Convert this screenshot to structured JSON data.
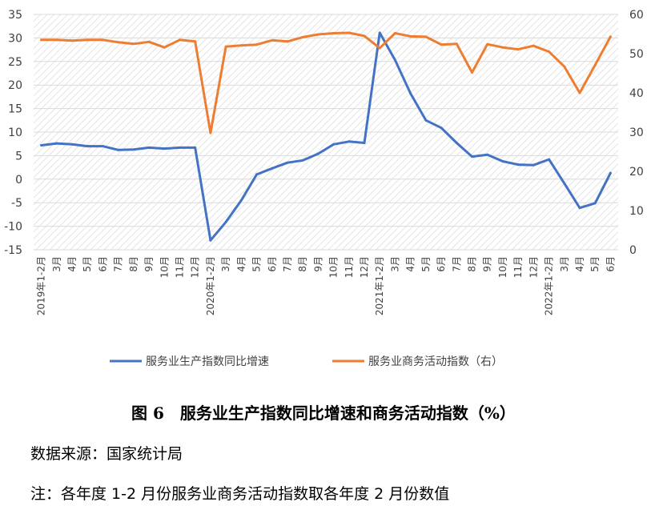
{
  "chart_data": {
    "type": "line",
    "categories": [
      "2019年1-2月",
      "3月",
      "4月",
      "5月",
      "6月",
      "7月",
      "8月",
      "9月",
      "10月",
      "11月",
      "12月",
      "2020年1-2月",
      "3月",
      "4月",
      "5月",
      "6月",
      "7月",
      "8月",
      "9月",
      "10月",
      "11月",
      "12月",
      "2021年1-2月",
      "3月",
      "4月",
      "5月",
      "6月",
      "7月",
      "8月",
      "9月",
      "10月",
      "11月",
      "12月",
      "2022年1-2月",
      "3月",
      "4月",
      "5月",
      "6月"
    ],
    "series": [
      {
        "name": "服务业生产指数同比增速",
        "axis": "left",
        "color": "#4472C4",
        "values": [
          7.2,
          7.6,
          7.4,
          7.0,
          7.0,
          6.2,
          6.3,
          6.7,
          6.5,
          6.7,
          6.7,
          -13.0,
          -9.1,
          -4.5,
          1.0,
          2.3,
          3.5,
          4.0,
          5.4,
          7.4,
          8.0,
          7.7,
          31.1,
          25.3,
          18.2,
          12.5,
          10.9,
          7.7,
          4.8,
          5.2,
          3.8,
          3.1,
          3.0,
          4.2,
          -0.9,
          -6.1,
          -5.1,
          1.3
        ]
      },
      {
        "name": "服务业商务活动指数（右）",
        "axis": "right",
        "color": "#ED7D31",
        "values": [
          53.5,
          53.5,
          53.3,
          53.5,
          53.5,
          52.9,
          52.5,
          53.0,
          51.6,
          53.5,
          53.1,
          29.8,
          51.8,
          52.1,
          52.3,
          53.4,
          53.1,
          54.2,
          54.9,
          55.2,
          55.3,
          54.5,
          51.4,
          55.2,
          54.4,
          54.3,
          52.3,
          52.5,
          45.2,
          52.4,
          51.6,
          51.1,
          52.0,
          50.5,
          46.7,
          40.0,
          47.1,
          54.3
        ]
      }
    ],
    "yleft": {
      "ylim": [
        -15,
        35
      ],
      "ticks": [
        "-15",
        "-10",
        "-5",
        "0",
        "5",
        "10",
        "15",
        "20",
        "25",
        "30",
        "35"
      ]
    },
    "yright": {
      "ylim": [
        0,
        60
      ],
      "ticks": [
        "0",
        "10",
        "20",
        "30",
        "40",
        "50",
        "60"
      ]
    },
    "grid": true,
    "legend": "bottom"
  },
  "caption": "图 6　服务业生产指数同比增速和商务活动指数（%）",
  "source_note": "数据来源：国家统计局",
  "footnote": "注：各年度 1-2 月份服务业商务活动指数取各年度 2 月份数值"
}
